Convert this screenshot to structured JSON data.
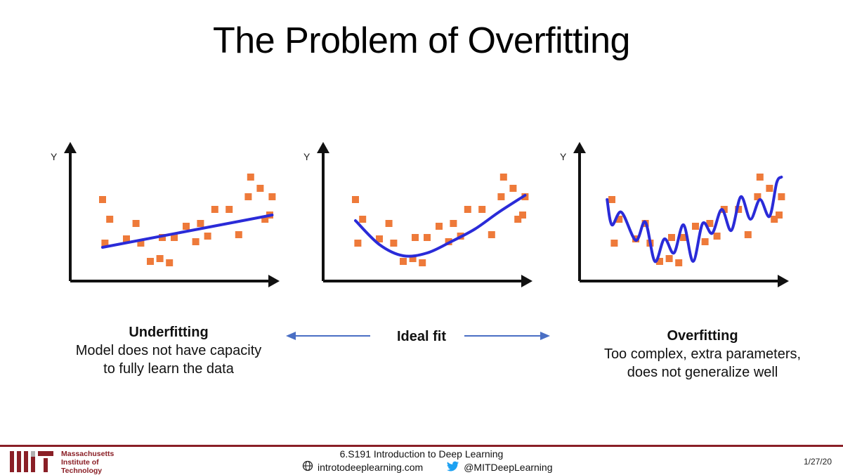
{
  "slide": {
    "title": "The Problem of Overfitting"
  },
  "colors": {
    "points": "#ee7a3a",
    "fit_line": "#2a2bd8",
    "axis": "#111111",
    "arrow": "#4a6fc4",
    "mit_red": "#8a1f26"
  },
  "chart_data": [
    {
      "type": "scatter",
      "title": "Underfitting",
      "ylabel": "Y",
      "xlabel": "",
      "points_x": [
        1.0,
        1.3,
        1.1,
        2.4,
        2.0,
        2.6,
        3.0,
        3.4,
        3.5,
        3.8,
        4.0,
        4.5,
        4.9,
        5.1,
        5.4,
        5.7,
        6.3,
        6.7,
        7.1,
        7.2,
        7.6,
        7.8,
        8.0,
        8.1
      ],
      "points_y": [
        5.4,
        4.0,
        2.3,
        3.7,
        2.6,
        2.3,
        1.0,
        1.2,
        2.7,
        0.9,
        2.7,
        3.5,
        2.4,
        3.7,
        2.8,
        4.7,
        4.7,
        2.9,
        5.6,
        7.0,
        6.2,
        4.0,
        4.3,
        5.6
      ],
      "fit": {
        "kind": "linear",
        "x": [
          1.0,
          8.1
        ],
        "y": [
          2.0,
          4.3
        ]
      }
    },
    {
      "type": "scatter",
      "title": "Ideal fit",
      "ylabel": "Y",
      "xlabel": "",
      "points_x": [
        1.0,
        1.3,
        1.1,
        2.4,
        2.0,
        2.6,
        3.0,
        3.4,
        3.5,
        3.8,
        4.0,
        4.5,
        4.9,
        5.1,
        5.4,
        5.7,
        6.3,
        6.7,
        7.1,
        7.2,
        7.6,
        7.8,
        8.0,
        8.1
      ],
      "points_y": [
        5.4,
        4.0,
        2.3,
        3.7,
        2.6,
        2.3,
        1.0,
        1.2,
        2.7,
        0.9,
        2.7,
        3.5,
        2.4,
        3.7,
        2.8,
        4.7,
        4.7,
        2.9,
        5.6,
        7.0,
        6.2,
        4.0,
        4.3,
        5.6
      ],
      "fit": {
        "kind": "smooth",
        "x": [
          1.0,
          2.0,
          3.0,
          4.0,
          5.0,
          6.0,
          7.0,
          8.1
        ],
        "y": [
          3.9,
          2.2,
          1.4,
          1.6,
          2.4,
          3.3,
          4.5,
          5.7
        ]
      }
    },
    {
      "type": "scatter",
      "title": "Overfitting",
      "ylabel": "Y",
      "xlabel": "",
      "points_x": [
        1.0,
        1.3,
        1.1,
        2.4,
        2.0,
        2.6,
        3.0,
        3.4,
        3.5,
        3.8,
        4.0,
        4.5,
        4.9,
        5.1,
        5.4,
        5.7,
        6.3,
        6.7,
        7.1,
        7.2,
        7.6,
        7.8,
        8.0,
        8.1
      ],
      "points_y": [
        5.4,
        4.0,
        2.3,
        3.7,
        2.6,
        2.3,
        1.0,
        1.2,
        2.7,
        0.9,
        2.7,
        3.5,
        2.4,
        3.7,
        2.8,
        4.7,
        4.7,
        2.9,
        5.6,
        7.0,
        6.2,
        4.0,
        4.3,
        5.6
      ],
      "fit": {
        "kind": "wiggly",
        "x": [
          0.8,
          1.0,
          1.4,
          2.0,
          2.4,
          2.8,
          3.2,
          3.6,
          4.0,
          4.4,
          4.8,
          5.2,
          5.6,
          6.0,
          6.4,
          6.8,
          7.2,
          7.6,
          7.9,
          8.1
        ],
        "y": [
          5.4,
          3.6,
          4.5,
          2.5,
          3.8,
          1.0,
          2.6,
          1.6,
          3.6,
          1.0,
          3.7,
          3.0,
          4.7,
          3.2,
          5.6,
          4.0,
          5.4,
          4.2,
          6.6,
          7.0
        ]
      }
    }
  ],
  "captions": {
    "under_head": "Underfitting",
    "under_line1": "Model does not have capacity",
    "under_line2": "to fully learn the data",
    "ideal": "Ideal fit",
    "over_head": "Overfitting",
    "over_line1": "Too complex, extra parameters,",
    "over_line2": "does not generalize well"
  },
  "footer": {
    "institution_line1": "Massachusetts",
    "institution_line2": "Institute of",
    "institution_line3": "Technology",
    "course": "6.S191 Introduction to Deep Learning",
    "website": "introtodeeplearning.com",
    "twitter": "@MITDeepLearning",
    "date": "1/27/20",
    "globe_icon": "globe-icon",
    "twitter_icon": "twitter-bird-icon"
  }
}
